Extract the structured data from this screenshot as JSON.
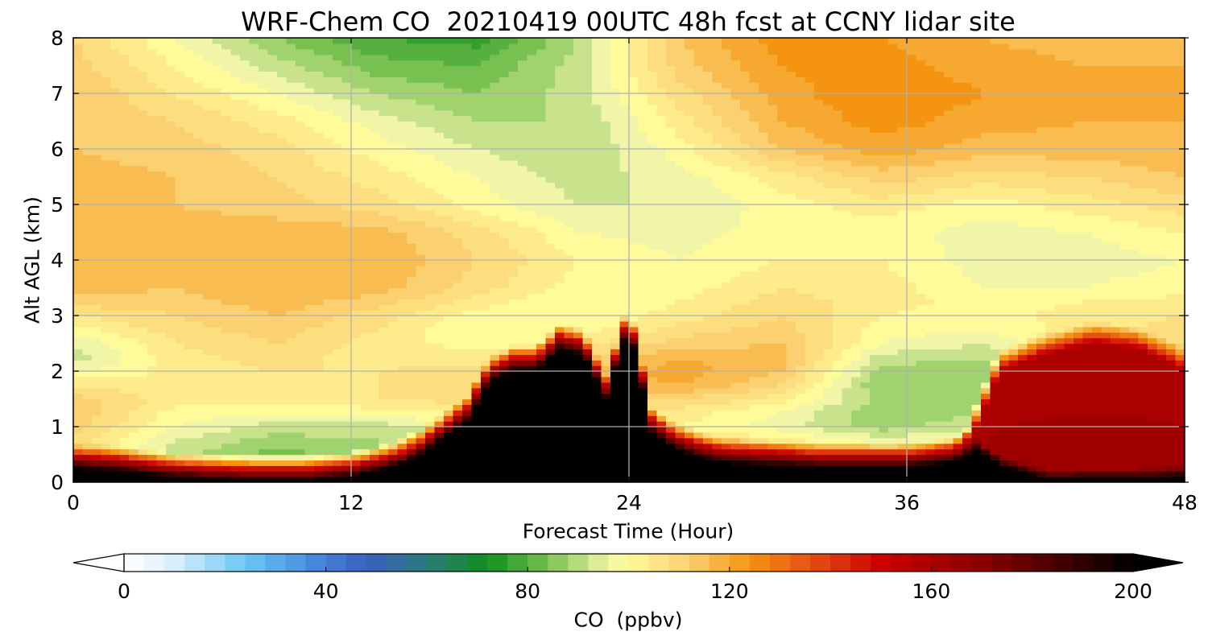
{
  "chart_data": {
    "type": "heatmap",
    "title": "WRF-Chem CO  20210419 00UTC 48h fcst at CCNY lidar site",
    "xlabel": "Forecast Time (Hour)",
    "ylabel": "Alt AGL (km)",
    "xlim": [
      0,
      48
    ],
    "ylim": [
      0,
      8
    ],
    "x_ticks": [
      0,
      12,
      24,
      36,
      48
    ],
    "y_ticks": [
      0,
      1,
      2,
      3,
      4,
      5,
      6,
      7,
      8
    ],
    "grid": true,
    "colorbar": {
      "label": "CO  (ppbv)",
      "range": [
        0,
        200
      ],
      "ticks": [
        0,
        40,
        80,
        120,
        160,
        200
      ],
      "extend": "both",
      "stops": [
        {
          "v": 0,
          "c": "#ffffff"
        },
        {
          "v": 10,
          "c": "#d9eefb"
        },
        {
          "v": 24,
          "c": "#6cc8f4"
        },
        {
          "v": 36,
          "c": "#4a8fe0"
        },
        {
          "v": 48,
          "c": "#3a5fc0"
        },
        {
          "v": 60,
          "c": "#2a7a7a"
        },
        {
          "v": 72,
          "c": "#0f8f1f"
        },
        {
          "v": 84,
          "c": "#78c050"
        },
        {
          "v": 96,
          "c": "#f0f5a8"
        },
        {
          "v": 100,
          "c": "#fffa9a"
        },
        {
          "v": 112,
          "c": "#fbd070"
        },
        {
          "v": 124,
          "c": "#f59410"
        },
        {
          "v": 136,
          "c": "#e65012"
        },
        {
          "v": 150,
          "c": "#cc0000"
        },
        {
          "v": 170,
          "c": "#8a0000"
        },
        {
          "v": 190,
          "c": "#300000"
        },
        {
          "v": 200,
          "c": "#000000"
        }
      ]
    },
    "field_hours": [
      0,
      2,
      4,
      6,
      8,
      10,
      12,
      14,
      15,
      16,
      17,
      18,
      19,
      20,
      21,
      22,
      23,
      24,
      25,
      26,
      27,
      28,
      30,
      32,
      34,
      36,
      38,
      39,
      40,
      42,
      44,
      46,
      48
    ],
    "field_altitudes_km": [
      0,
      0.15,
      0.3,
      0.5,
      0.75,
      1.0,
      1.25,
      1.5,
      1.75,
      2.0,
      2.25,
      2.5,
      2.75,
      3.0,
      3.25,
      3.5,
      4.0,
      4.5,
      5.0,
      5.5,
      6.0,
      6.5,
      7.0,
      7.5,
      8.0
    ],
    "surface_plume_top_km": [
      0.25,
      0.2,
      0.1,
      0.05,
      0.03,
      0.03,
      0.1,
      0.3,
      0.5,
      0.8,
      1.1,
      1.8,
      2.0,
      2.0,
      2.4,
      2.3,
      1.5,
      2.8,
      0.9,
      0.6,
      0.45,
      0.35,
      0.3,
      0.25,
      0.25,
      0.25,
      0.35,
      0.6,
      0.3,
      0.05,
      0.05,
      0.05,
      0.1
    ],
    "polluted_layer_top_km": [
      0,
      0,
      0,
      0,
      0,
      0,
      0,
      0,
      0,
      0,
      0,
      0,
      0,
      0,
      0,
      0,
      0,
      0,
      0,
      0,
      0,
      0,
      0,
      0,
      0,
      0,
      0,
      1.0,
      2.0,
      2.3,
      2.5,
      2.4,
      2.0
    ],
    "background_co_ppbv": [
      [
        118,
        96,
        100,
        104,
        110,
        114,
        118,
        112,
        108,
        104,
        112,
        114
      ],
      [
        112,
        94,
        90,
        96,
        104,
        112,
        116,
        120,
        116,
        112,
        118,
        118
      ],
      [
        106,
        90,
        86,
        92,
        98,
        108,
        114,
        118,
        116,
        114,
        120,
        122
      ],
      [
        104,
        92,
        84,
        88,
        96,
        104,
        110,
        112,
        108,
        110,
        116,
        120
      ],
      [
        108,
        94,
        88,
        90,
        96,
        102,
        106,
        104,
        96,
        100,
        110,
        118
      ],
      [
        112,
        98,
        92,
        92,
        96,
        100,
        102,
        96,
        88,
        94,
        106,
        116
      ],
      [
        114,
        100,
        98,
        100,
        102,
        104,
        104,
        98,
        86,
        90,
        104,
        114
      ],
      [
        112,
        104,
        104,
        106,
        108,
        110,
        110,
        104,
        88,
        90,
        104,
        114
      ],
      [
        106,
        102,
        104,
        106,
        110,
        116,
        118,
        110,
        86,
        88,
        106,
        116
      ],
      [
        96,
        104,
        106,
        106,
        108,
        114,
        120,
        114,
        88,
        88,
        106,
        114
      ],
      [
        92,
        104,
        108,
        104,
        104,
        110,
        118,
        116,
        92,
        90,
        104,
        112
      ],
      [
        94,
        106,
        110,
        104,
        100,
        104,
        112,
        114,
        98,
        94,
        104,
        110
      ],
      [
        100,
        108,
        112,
        106,
        98,
        100,
        108,
        112,
        100,
        98,
        104,
        108
      ],
      [
        106,
        110,
        114,
        108,
        100,
        98,
        104,
        110,
        102,
        100,
        104,
        106
      ],
      [
        112,
        112,
        116,
        112,
        104,
        98,
        102,
        108,
        104,
        100,
        102,
        104
      ],
      [
        116,
        114,
        118,
        116,
        108,
        100,
        100,
        106,
        104,
        98,
        98,
        100
      ],
      [
        118,
        116,
        118,
        118,
        110,
        102,
        98,
        102,
        102,
        96,
        96,
        98
      ],
      [
        118,
        116,
        116,
        116,
        108,
        98,
        96,
        100,
        100,
        96,
        98,
        102
      ],
      [
        116,
        114,
        112,
        108,
        100,
        94,
        94,
        100,
        104,
        100,
        104,
        108
      ],
      [
        116,
        114,
        110,
        104,
        98,
        92,
        96,
        104,
        112,
        108,
        110,
        114
      ],
      [
        114,
        112,
        108,
        100,
        94,
        90,
        100,
        114,
        120,
        116,
        116,
        118
      ],
      [
        114,
        110,
        104,
        96,
        90,
        90,
        104,
        118,
        124,
        120,
        118,
        118
      ],
      [
        114,
        106,
        98,
        90,
        86,
        92,
        108,
        120,
        126,
        122,
        120,
        120
      ],
      [
        112,
        102,
        92,
        84,
        82,
        92,
        112,
        122,
        124,
        120,
        118,
        118
      ],
      [
        110,
        98,
        86,
        78,
        76,
        90,
        114,
        124,
        122,
        118,
        116,
        118
      ]
    ]
  }
}
